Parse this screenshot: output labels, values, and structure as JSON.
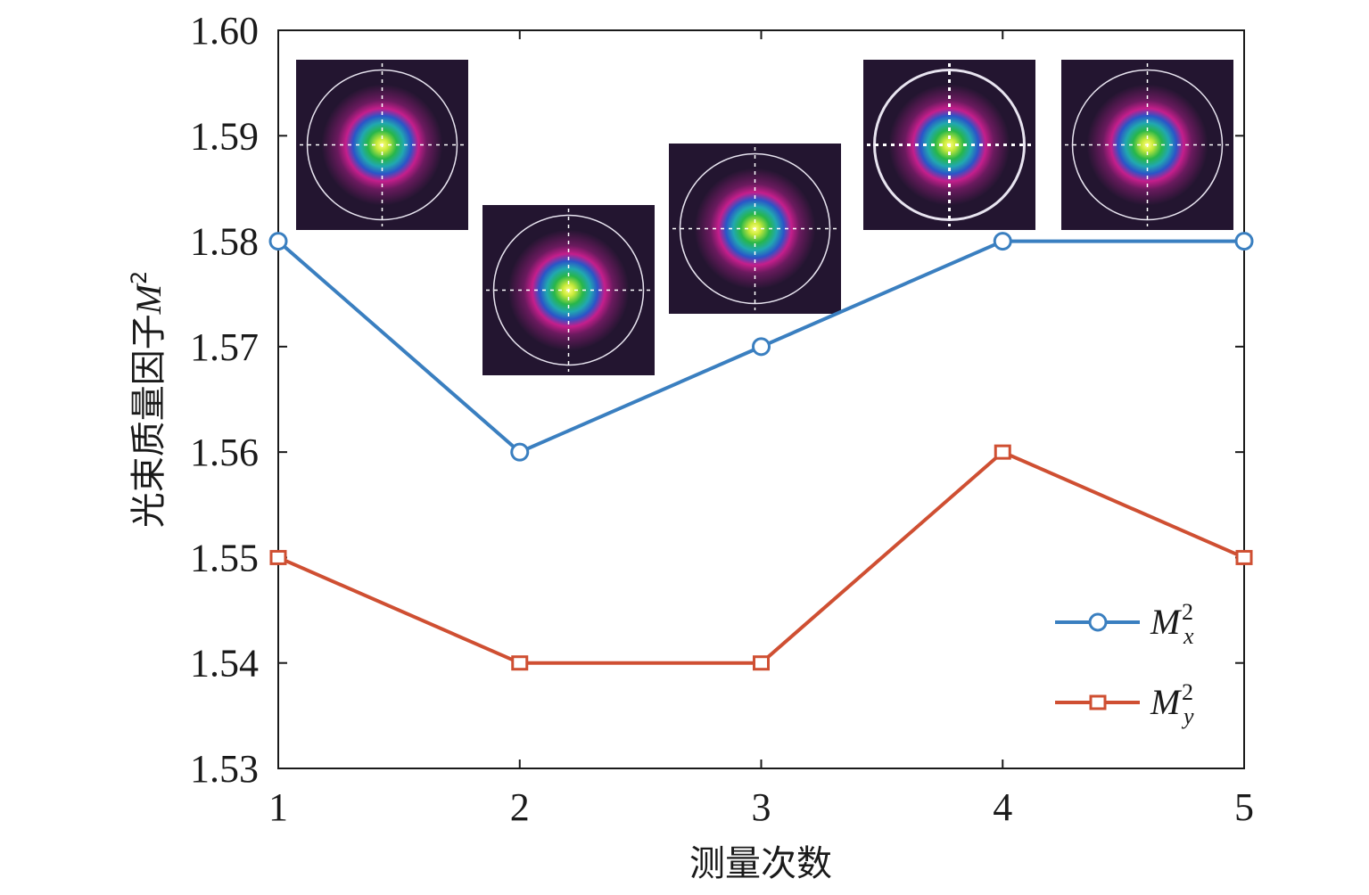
{
  "chart_data": {
    "type": "line",
    "x": [
      1,
      2,
      3,
      4,
      5
    ],
    "xticks": [
      "1",
      "2",
      "3",
      "4",
      "5"
    ],
    "yticks": [
      "1.60",
      "1.59",
      "1.58",
      "1.57",
      "1.56",
      "1.55",
      "1.54",
      "1.53"
    ],
    "xlim": [
      1,
      5
    ],
    "ylim": [
      1.53,
      1.6
    ],
    "xlabel": "测量次数",
    "ylabel_prefix": "光束质量因子",
    "ylabel_symbol": "M",
    "ylabel_sup": "2",
    "grid": false,
    "legend_position": "bottom-right",
    "series": [
      {
        "name_main": "M",
        "name_sup": "2",
        "name_sub": "x",
        "values": [
          1.58,
          1.56,
          1.57,
          1.58,
          1.58
        ],
        "color": "#3a7fc0",
        "marker": "circle"
      },
      {
        "name_main": "M",
        "name_sup": "2",
        "name_sub": "y",
        "values": [
          1.55,
          1.54,
          1.54,
          1.56,
          1.55
        ],
        "color": "#cf4f32",
        "marker": "square"
      }
    ],
    "insets": [
      {
        "measurement": 1,
        "type": "beam-profile"
      },
      {
        "measurement": 2,
        "type": "beam-profile"
      },
      {
        "measurement": 3,
        "type": "beam-profile"
      },
      {
        "measurement": 4,
        "type": "beam-profile"
      },
      {
        "measurement": 5,
        "type": "beam-profile"
      }
    ]
  }
}
